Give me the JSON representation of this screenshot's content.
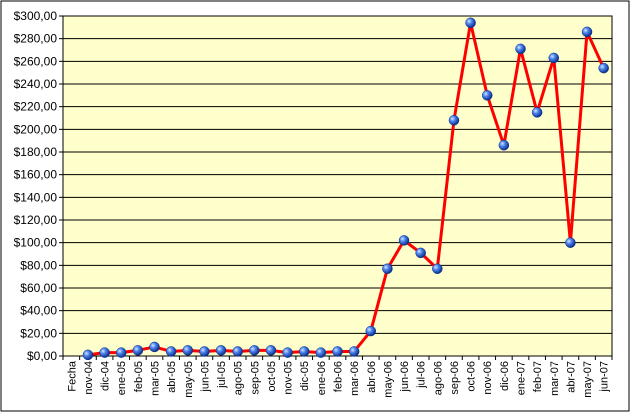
{
  "chart_data": {
    "type": "line",
    "categories": [
      "Fecha",
      "nov-04",
      "dic-04",
      "ene-05",
      "feb-05",
      "mar-05",
      "abr-05",
      "may-05",
      "jun-05",
      "jul-05",
      "ago-05",
      "sep-05",
      "oct-05",
      "nov-05",
      "dic-05",
      "ene-06",
      "feb-06",
      "mar-06",
      "abr-06",
      "may-06",
      "jun-06",
      "jul-06",
      "ago-06",
      "sep-06",
      "oct-06",
      "nov-06",
      "dic-06",
      "ene-07",
      "feb-07",
      "mar-07",
      "abr-07",
      "may-07",
      "jun-07"
    ],
    "series": [
      {
        "values": [
          null,
          1,
          3,
          3,
          5,
          8,
          4,
          5,
          4,
          5,
          4,
          5,
          5,
          3,
          4,
          3,
          4,
          4,
          22,
          77,
          102,
          91,
          77,
          208,
          294,
          230,
          186,
          271,
          215,
          263,
          100,
          286,
          254
        ],
        "color": "#ff0000",
        "marker_color": "#1f5fd6"
      }
    ],
    "title": "",
    "xlabel": "",
    "ylabel": "",
    "ylim": [
      0,
      300
    ],
    "y_tick_step": 20,
    "y_tick_format": "currency-comma",
    "y_tick_labels": [
      "$0,00",
      "$20,00",
      "$40,00",
      "$60,00",
      "$80,00",
      "$100,00",
      "$120,00",
      "$140,00",
      "$160,00",
      "$180,00",
      "$200,00",
      "$220,00",
      "$240,00",
      "$260,00",
      "$280,00",
      "$300,00"
    ],
    "grid": true,
    "legend": "none",
    "colors": {
      "plot_background": "#ffffcc",
      "outer_background": "#ffffff",
      "gridline": "#000000",
      "border": "#000000"
    }
  }
}
